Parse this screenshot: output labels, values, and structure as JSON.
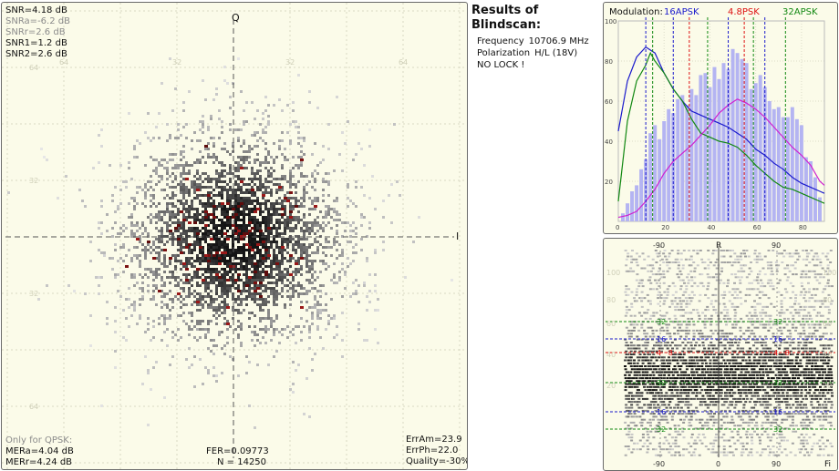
{
  "constellation": {
    "axis_q": "Q",
    "axis_i": "I",
    "tick_labels": [
      "64",
      "32",
      "32",
      "64"
    ],
    "snr": [
      {
        "text": "SNR=4.18 dB",
        "muted": false
      },
      {
        "text": "SNRa=-6.2 dB",
        "muted": true
      },
      {
        "text": "SNRr=2.6 dB",
        "muted": true
      },
      {
        "text": "SNR1=1.2 dB",
        "muted": false
      },
      {
        "text": "SNR2=2.6 dB",
        "muted": false
      }
    ],
    "qpsk_note": "Only for QPSK:",
    "mera": "MERa=4.04 dB",
    "merr": "MERr=4.24 dB",
    "fer": "FER=0.09773",
    "n": "N = 14250",
    "err_am": "ErrAm=23.9",
    "err_ph": "ErrPh=22.0",
    "quality": "Quality=-30%"
  },
  "results": {
    "title": "Results of Blindscan:",
    "frequency_label": "Frequency",
    "frequency_value": "10706.9 MHz",
    "polarization_label": "Polarization",
    "polarization_value": "H/L (18V)",
    "status": "NO LOCK !"
  },
  "histogram": {
    "modulation_label": "Modulation:",
    "mod_16apsk": "16APSK",
    "mod_48psk": "4.8PSK",
    "mod_32apsk": "32APSK",
    "colors": {
      "16apsk": "#1a1acc",
      "48psk": "#dd1111",
      "32apsk": "#118811",
      "bars": "#b4b4f2",
      "magenta": "#d020d0"
    }
  },
  "phase": {
    "top_ticks": [
      "-90",
      "R",
      "90"
    ],
    "bottom_ticks": [
      "-90",
      "0",
      "90",
      "Fi"
    ],
    "left_ticks": [
      "100",
      "80",
      "60",
      "40",
      "20"
    ],
    "ring_labels": [
      {
        "text": "32",
        "color": "#118811"
      },
      {
        "text": "16",
        "color": "#1a1acc"
      },
      {
        "text": "4 · 8",
        "color": "#dd1111"
      },
      {
        "text": "32",
        "color": "#118811"
      },
      {
        "text": "16",
        "color": "#1a1acc"
      },
      {
        "text": "32",
        "color": "#118811"
      }
    ]
  },
  "chart_data": {
    "type": "bar",
    "title": "",
    "x_ticks": [
      0,
      20,
      40,
      60,
      80
    ],
    "y_ticks": [
      20,
      40,
      60,
      80,
      100
    ],
    "xlim": [
      0,
      90
    ],
    "ylim": [
      0,
      100
    ],
    "bars_x": [
      2,
      4,
      6,
      8,
      10,
      12,
      14,
      16,
      18,
      20,
      22,
      24,
      26,
      28,
      30,
      32,
      34,
      36,
      38,
      40,
      42,
      44,
      46,
      48,
      50,
      52,
      54,
      56,
      58,
      60,
      62,
      64,
      66,
      68,
      70,
      72,
      74,
      76,
      78,
      80,
      82,
      84,
      86,
      88
    ],
    "bars_y": [
      4,
      9,
      15,
      18,
      26,
      31,
      44,
      48,
      41,
      50,
      56,
      54,
      61,
      63,
      58,
      66,
      63,
      73,
      74,
      67,
      77,
      71,
      79,
      76,
      86,
      84,
      81,
      79,
      66,
      69,
      73,
      67,
      60,
      56,
      57,
      52,
      52,
      57,
      51,
      48,
      32,
      30,
      22,
      12
    ],
    "series": [
      {
        "name": "16APSK",
        "x": [
          0,
          4,
          8,
          12,
          16,
          20,
          24,
          28,
          32,
          36,
          40,
          44,
          48,
          52,
          56,
          60,
          64,
          68,
          72,
          76,
          80,
          84,
          88,
          90
        ],
        "y": [
          45,
          70,
          82,
          87,
          84,
          74,
          66,
          60,
          55,
          53,
          51,
          49,
          47,
          44,
          41,
          36,
          33,
          29,
          26,
          22,
          19,
          17,
          15,
          14
        ]
      },
      {
        "name": "32APSK",
        "x": [
          0,
          4,
          8,
          12,
          14,
          16,
          20,
          24,
          28,
          32,
          36,
          40,
          44,
          48,
          52,
          56,
          60,
          64,
          68,
          72,
          76,
          80,
          84,
          88,
          90
        ],
        "y": [
          10,
          50,
          70,
          78,
          84,
          80,
          74,
          66,
          60,
          51,
          44,
          42,
          40,
          39,
          37,
          33,
          28,
          24,
          20,
          17,
          16,
          14,
          12,
          10,
          9
        ]
      },
      {
        "name": "4.8PSK",
        "x": [
          0,
          4,
          8,
          12,
          16,
          20,
          24,
          28,
          32,
          36,
          40,
          44,
          48,
          52,
          56,
          60,
          64,
          68,
          72,
          76,
          80,
          84,
          88,
          90
        ],
        "y": [
          2,
          3,
          5,
          10,
          16,
          24,
          30,
          34,
          38,
          43,
          48,
          54,
          58,
          61,
          59,
          56,
          52,
          47,
          42,
          37,
          33,
          28,
          20,
          18
        ]
      }
    ],
    "markers": {
      "16APSK": [
        12,
        24,
        48,
        64
      ],
      "4.8PSK": [
        31,
        55
      ],
      "32APSK": [
        15,
        39,
        59,
        73
      ]
    },
    "phase_ticks_x": [
      -90,
      0,
      90
    ],
    "phase_ticks_y": [
      20,
      40,
      60,
      80,
      100
    ]
  }
}
